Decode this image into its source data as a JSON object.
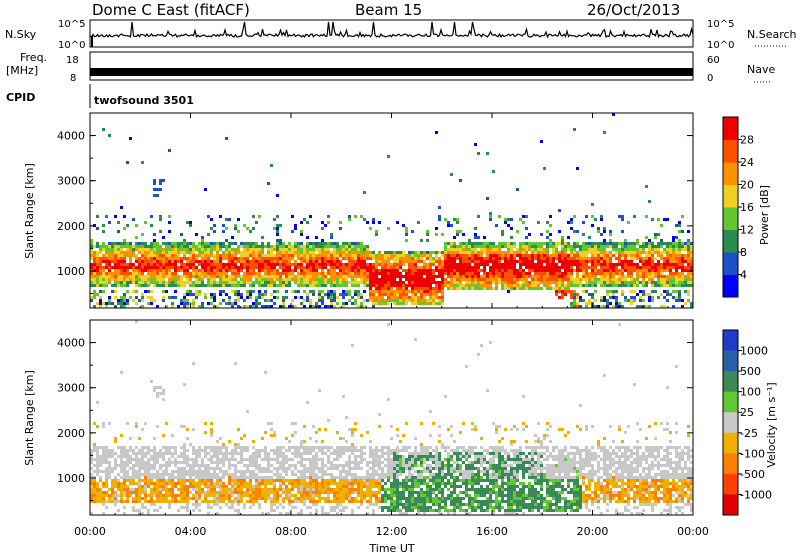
{
  "header": {
    "station": "Dome C East (fitACF)",
    "beam": "Beam 15",
    "date": "26/Oct/2013"
  },
  "top_panels": {
    "nsky": {
      "label": "N.Sky",
      "tick_top": "10^5",
      "tick_bottom": "10^0"
    },
    "nsearch": {
      "label": "N.Search",
      "tick_top": "10^5",
      "tick_bottom": "10^0"
    },
    "freq": {
      "label_line1": "Freq.",
      "label_line2": "[MHz]",
      "tick_top": "18",
      "tick_bottom": "8"
    },
    "nave": {
      "label": "Nave",
      "tick_top": "60",
      "tick_bottom": "0"
    },
    "cpid": {
      "label": "CPID",
      "value": "twofsound 3501"
    }
  },
  "chart_data": [
    {
      "type": "heatmap",
      "name": "power",
      "ylabel": "Slant Range [km]",
      "xlabel": "",
      "x_ticks": [
        "00:00",
        "04:00",
        "08:00",
        "12:00",
        "16:00",
        "20:00",
        "00:00"
      ],
      "y_ticks": [
        "1000",
        "2000",
        "3000",
        "4000"
      ],
      "ylim_km": [
        180,
        4500
      ],
      "colorbar": {
        "label": "Power [dB]",
        "ticks": [
          "4",
          "8",
          "12",
          "16",
          "20",
          "24",
          "28"
        ],
        "colors": [
          "#0000ff",
          "#1e50c8",
          "#2a8c4e",
          "#62c62e",
          "#f0d020",
          "#ff9000",
          "#ff5000",
          "#ee0000"
        ]
      }
    },
    {
      "type": "heatmap",
      "name": "velocity",
      "ylabel": "Slant Range [km]",
      "xlabel": "Time UT",
      "x_ticks": [
        "00:00",
        "04:00",
        "08:00",
        "12:00",
        "16:00",
        "20:00",
        "00:00"
      ],
      "y_ticks": [
        "1000",
        "2000",
        "3000",
        "4000"
      ],
      "ylim_km": [
        180,
        4500
      ],
      "colorbar": {
        "label": "Velocity [m s⁻¹]",
        "ticks": [
          "1000",
          "500",
          "100",
          "25",
          "-25",
          "-100",
          "-500",
          "-1000"
        ],
        "colors": [
          "#1e3cc8",
          "#2a60a8",
          "#3a8a58",
          "#60c830",
          "#c8c8c8",
          "#f0b000",
          "#ff8000",
          "#ff4000",
          "#e00000"
        ]
      }
    }
  ]
}
